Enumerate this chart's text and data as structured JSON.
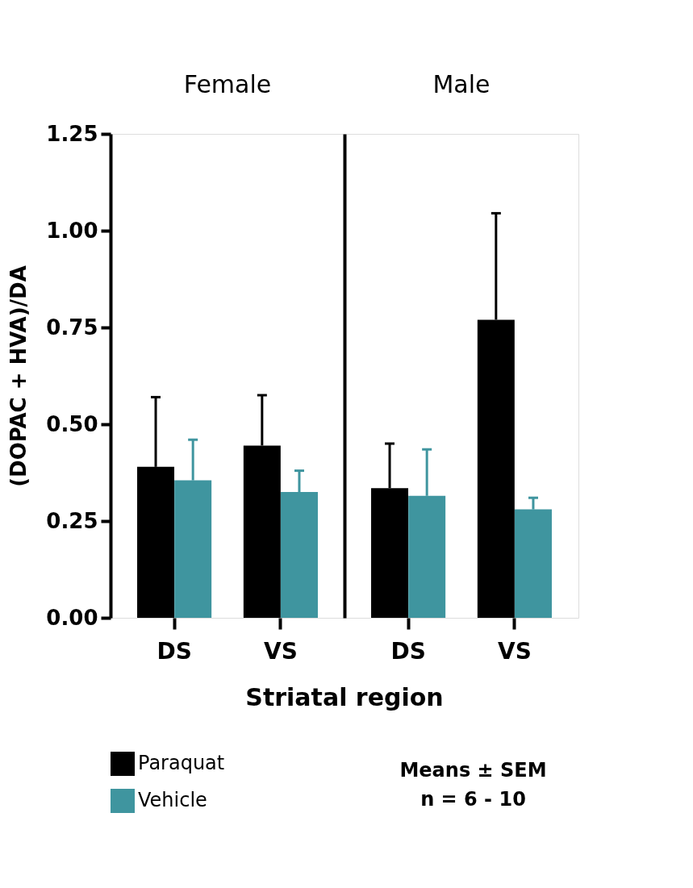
{
  "chart_data": [
    {
      "type": "bar",
      "title": "Female",
      "ylabel": "(DOPAC + HVA)/DA",
      "xlabel": "Striatal region",
      "categories": [
        "DS",
        "VS"
      ],
      "ylim": [
        0,
        1.25
      ],
      "yticks": [
        {
          "value": 0,
          "label": "0.00"
        },
        {
          "value": 0.25,
          "label": "0.25"
        },
        {
          "value": 0.5,
          "label": "0.50"
        },
        {
          "value": 0.75,
          "label": "0.75"
        },
        {
          "value": 1,
          "label": "1.00"
        },
        {
          "value": 1.25,
          "label": "1.25"
        }
      ],
      "grid": false,
      "legend": "bottom",
      "series": [
        {
          "name": "Paraquat",
          "color": "#000000",
          "values": [
            0.39,
            0.445
          ],
          "errors": [
            [
              0.39,
              0.57
            ],
            [
              0.445,
              0.575
            ]
          ]
        },
        {
          "name": "Vehicle",
          "color": "#3f959f",
          "values": [
            0.355,
            0.325
          ],
          "errors": [
            [
              0.355,
              0.46
            ],
            [
              0.325,
              0.38
            ]
          ]
        }
      ]
    },
    {
      "type": "bar",
      "title": "Male",
      "categories": [
        "DS",
        "VS"
      ],
      "ylim": [
        0,
        1.25
      ],
      "tick_labels": "x",
      "grid": false,
      "annotations": [
        "Means ± SEM",
        "n = 6 - 10"
      ],
      "series": [
        {
          "name": "Paraquat",
          "color": "#000000",
          "values": [
            0.335,
            0.77
          ],
          "errors": [
            [
              0.335,
              0.45
            ],
            [
              0.77,
              1.045
            ]
          ]
        },
        {
          "name": "Vehicle",
          "color": "#3f959f",
          "values": [
            0.315,
            0.28
          ],
          "errors": [
            [
              0.315,
              0.435
            ],
            [
              0.28,
              0.31
            ]
          ]
        }
      ]
    }
  ]
}
